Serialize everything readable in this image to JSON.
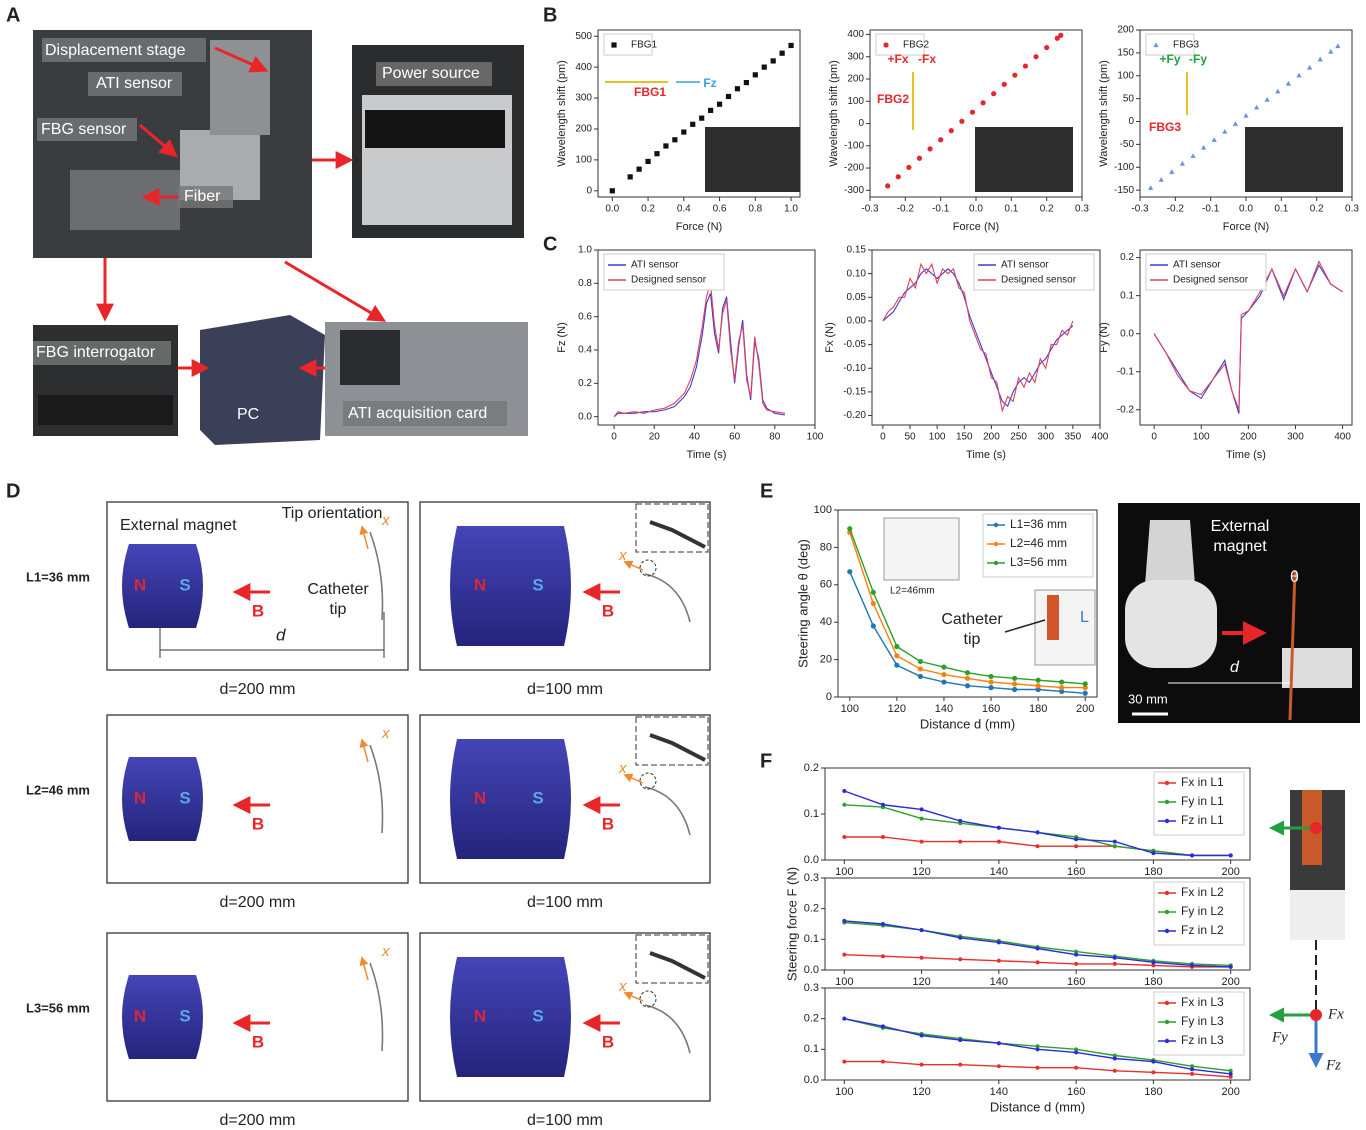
{
  "panels": {
    "A": {
      "label": "A",
      "texts": [
        "Displacement stage",
        "ATI sensor",
        "FBG sensor",
        "Fiber",
        "Power source",
        "FBG interrogator",
        "PC",
        "ATI acquisition card"
      ]
    },
    "B": {
      "label": "B"
    },
    "C": {
      "label": "C"
    },
    "D": {
      "label": "D",
      "external_magnet": "External magnet",
      "tip_orientation": "Tip orientation",
      "catheter_tip": [
        "Catheter",
        "tip"
      ],
      "poles": [
        "N",
        "S"
      ],
      "field": "B",
      "axis": "x",
      "distance": "d",
      "rows": [
        {
          "label": "L1=36 mm",
          "captions": [
            "d=200 mm",
            "d=100 mm"
          ]
        },
        {
          "label": "L2=46 mm",
          "captions": [
            "d=200 mm",
            "d=100 mm"
          ]
        },
        {
          "label": "L3=56 mm",
          "captions": [
            "d=200 mm",
            "d=100 mm"
          ]
        }
      ]
    },
    "E": {
      "label": "E",
      "inset_label": "L2=46mm",
      "catheter_tip": [
        "Catheter",
        "tip"
      ],
      "length": "L",
      "photo": {
        "external_magnet": [
          "External",
          "magnet"
        ],
        "theta": "θ",
        "distance": "d",
        "scale": "30 mm"
      }
    },
    "F": {
      "label": "F",
      "ylabel": "Steering force F (N)",
      "diagram": {
        "fx": "Fx",
        "fy": "Fy",
        "fz": "Fz"
      }
    }
  },
  "chart_data": [
    {
      "type": "scatter",
      "marker": "square",
      "x": [
        0,
        0.1,
        0.15,
        0.2,
        0.25,
        0.3,
        0.35,
        0.4,
        0.45,
        0.5,
        0.55,
        0.6,
        0.65,
        0.7,
        0.75,
        0.8,
        0.85,
        0.9,
        0.95,
        1.0
      ],
      "series": [
        {
          "name": "FBG1",
          "color": "#111111",
          "values": [
            0,
            45,
            70,
            95,
            120,
            145,
            165,
            190,
            215,
            235,
            260,
            280,
            305,
            330,
            350,
            375,
            400,
            420,
            445,
            470
          ]
        }
      ],
      "xlim": [
        -0.08,
        1.05
      ],
      "ylim": [
        -20,
        520
      ],
      "xticks": [
        {
          "value": 0,
          "label": "0.0"
        },
        0.2,
        0.4,
        0.6,
        0.8,
        {
          "value": 1,
          "label": "1.0"
        }
      ],
      "yticks": [
        0,
        100,
        200,
        300,
        400,
        500
      ],
      "xlabel": "Force (N)",
      "ylabel": "Wavelength shift (pm)",
      "legend": "upper left",
      "annotations": [
        "FBG1",
        "Fz"
      ]
    },
    {
      "type": "scatter",
      "marker": "circle",
      "x": [
        -0.25,
        -0.22,
        -0.19,
        -0.16,
        -0.13,
        -0.1,
        -0.07,
        -0.04,
        -0.01,
        0.02,
        0.05,
        0.08,
        0.11,
        0.14,
        0.17,
        0.2,
        0.23,
        0.24
      ],
      "series": [
        {
          "name": "FBG2",
          "color": "#e8262a",
          "values": [
            -280,
            -239,
            -197,
            -156,
            -114,
            -73,
            -32,
            10,
            51,
            93,
            134,
            176,
            217,
            258,
            300,
            341,
            383,
            396
          ]
        }
      ],
      "xlim": [
        -0.3,
        0.3
      ],
      "ylim": [
        -330,
        420
      ],
      "xticks": [
        -0.3,
        -0.2,
        -0.1,
        {
          "value": 0,
          "label": "0.0"
        },
        0.1,
        0.2,
        0.3
      ],
      "yticks": [
        -300,
        -200,
        -100,
        0,
        100,
        200,
        300,
        400
      ],
      "xlabel": "Force (N)",
      "ylabel": "Wavelength shift (pm)",
      "legend": "upper left",
      "annotations": [
        "FBG2",
        "+Fx",
        "-Fx"
      ]
    },
    {
      "type": "scatter",
      "marker": "triangle",
      "x": [
        -0.27,
        -0.24,
        -0.21,
        -0.18,
        -0.15,
        -0.12,
        -0.09,
        -0.06,
        -0.03,
        0,
        0.03,
        0.06,
        0.09,
        0.12,
        0.15,
        0.18,
        0.21,
        0.24,
        0.26
      ],
      "series": [
        {
          "name": "FBG3",
          "color": "#6b8cf0",
          "values": [
            -145,
            -127,
            -110,
            -92,
            -75,
            -57,
            -40,
            -22,
            -5,
            13,
            31,
            48,
            66,
            83,
            101,
            118,
            136,
            153,
            165
          ]
        }
      ],
      "xlim": [
        -0.3,
        0.3
      ],
      "ylim": [
        -165,
        200
      ],
      "xticks": [
        -0.3,
        -0.2,
        -0.1,
        {
          "value": 0,
          "label": "0.0"
        },
        0.1,
        0.2,
        0.3
      ],
      "yticks": [
        -150,
        -100,
        -50,
        0,
        50,
        100,
        150,
        200
      ],
      "xlabel": "Force (N)",
      "ylabel": "Wavelength shift (pm)",
      "legend": "upper left",
      "annotations": [
        "FBG3",
        "+Fy",
        "-Fy"
      ]
    },
    {
      "type": "line",
      "x": [
        0,
        2,
        5,
        10,
        15,
        20,
        25,
        30,
        35,
        38,
        41,
        44,
        46,
        48,
        50,
        52,
        54,
        56,
        58,
        60,
        62,
        64,
        66,
        68,
        70,
        72,
        74,
        76,
        80,
        85
      ],
      "series": [
        {
          "name": "ATI sensor",
          "color": "#3b3bd6",
          "values": [
            0,
            0.02,
            0.02,
            0.02,
            0.03,
            0.03,
            0.04,
            0.06,
            0.12,
            0.18,
            0.3,
            0.5,
            0.68,
            0.74,
            0.5,
            0.38,
            0.65,
            0.72,
            0.45,
            0.2,
            0.42,
            0.58,
            0.25,
            0.1,
            0.45,
            0.35,
            0.1,
            0.05,
            0.02,
            0.01
          ]
        },
        {
          "name": "Designed sensor",
          "color": "#e0405a",
          "values": [
            0,
            0.03,
            0.02,
            0.03,
            0.02,
            0.04,
            0.05,
            0.08,
            0.14,
            0.22,
            0.34,
            0.55,
            0.72,
            0.8,
            0.55,
            0.4,
            0.62,
            0.7,
            0.4,
            0.22,
            0.45,
            0.55,
            0.22,
            0.12,
            0.48,
            0.32,
            0.08,
            0.04,
            0.03,
            0.02
          ]
        }
      ],
      "xlim": [
        -8,
        100
      ],
      "ylim": [
        -0.05,
        1.0
      ],
      "xticks": [
        0,
        20,
        40,
        60,
        80,
        100
      ],
      "yticks": [
        {
          "value": 0,
          "label": "0.0"
        },
        0.2,
        0.4,
        0.6,
        0.8,
        {
          "value": 1,
          "label": "1.0"
        }
      ],
      "xlabel": "Time (s)",
      "ylabel": "Fz (N)",
      "legend": "upper left"
    },
    {
      "type": "line",
      "x": [
        0,
        10,
        20,
        30,
        40,
        50,
        60,
        70,
        80,
        90,
        100,
        110,
        120,
        130,
        140,
        150,
        160,
        170,
        180,
        190,
        200,
        210,
        220,
        230,
        240,
        250,
        260,
        270,
        280,
        290,
        300,
        310,
        320,
        330,
        340,
        350
      ],
      "series": [
        {
          "name": "ATI sensor",
          "color": "#3b3bd6",
          "values": [
            0,
            0.01,
            0.02,
            0.04,
            0.06,
            0.07,
            0.08,
            0.1,
            0.11,
            0.1,
            0.09,
            0.1,
            0.11,
            0.1,
            0.08,
            0.05,
            0.01,
            -0.02,
            -0.05,
            -0.08,
            -0.11,
            -0.14,
            -0.17,
            -0.18,
            -0.15,
            -0.13,
            -0.12,
            -0.13,
            -0.11,
            -0.09,
            -0.08,
            -0.06,
            -0.04,
            -0.03,
            -0.02,
            -0.01
          ]
        },
        {
          "name": "Designed sensor",
          "color": "#e0405a",
          "values": [
            0,
            0.02,
            0.03,
            0.05,
            0.05,
            0.09,
            0.07,
            0.12,
            0.1,
            0.12,
            0.08,
            0.11,
            0.1,
            0.11,
            0.07,
            0.06,
            0,
            -0.03,
            -0.06,
            -0.07,
            -0.12,
            -0.13,
            -0.19,
            -0.16,
            -0.17,
            -0.12,
            -0.14,
            -0.11,
            -0.13,
            -0.08,
            -0.1,
            -0.05,
            -0.05,
            -0.02,
            -0.03,
            0
          ]
        }
      ],
      "xlim": [
        -20,
        400
      ],
      "ylim": [
        -0.22,
        0.15
      ],
      "xticks": [
        0,
        50,
        100,
        150,
        200,
        250,
        300,
        350,
        400
      ],
      "yticks": [
        {
          "value": -0.2,
          "label": "-0.20"
        },
        -0.15,
        {
          "value": -0.1,
          "label": "-0.10"
        },
        -0.05,
        {
          "value": 0,
          "label": "0.00"
        },
        0.05,
        {
          "value": 0.1,
          "label": "0.10"
        },
        0.15
      ],
      "xlabel": "Time (s)",
      "ylabel": "Fx (N)",
      "legend": "upper right"
    },
    {
      "type": "line",
      "x": [
        0,
        25,
        50,
        75,
        100,
        125,
        150,
        165,
        180,
        185,
        200,
        225,
        250,
        275,
        300,
        325,
        350,
        375,
        400
      ],
      "series": [
        {
          "name": "ATI sensor",
          "color": "#3b3bd6",
          "values": [
            0,
            -0.05,
            -0.1,
            -0.15,
            -0.17,
            -0.12,
            -0.07,
            -0.15,
            -0.21,
            0.04,
            0.06,
            0.1,
            0.17,
            0.09,
            0.17,
            0.11,
            0.18,
            0.13,
            0.11
          ]
        },
        {
          "name": "Designed sensor",
          "color": "#e0405a",
          "values": [
            0,
            -0.05,
            -0.11,
            -0.15,
            -0.16,
            -0.12,
            -0.08,
            -0.15,
            -0.2,
            0.05,
            0.06,
            0.11,
            0.17,
            0.1,
            0.17,
            0.11,
            0.19,
            0.13,
            0.11
          ]
        }
      ],
      "xlim": [
        -30,
        420
      ],
      "ylim": [
        -0.24,
        0.22
      ],
      "xticks": [
        0,
        100,
        200,
        300,
        400
      ],
      "yticks": [
        -0.2,
        -0.1,
        {
          "value": 0,
          "label": "0.0"
        },
        0.1,
        0.2
      ],
      "xlabel": "Time (s)",
      "ylabel": "Fy (N)",
      "legend": "upper left"
    },
    {
      "type": "line",
      "markers": true,
      "x": [
        100,
        110,
        120,
        130,
        140,
        150,
        160,
        170,
        180,
        190,
        200
      ],
      "series": [
        {
          "name": "L1=36 mm",
          "color": "#1f77b4",
          "values": [
            67,
            38,
            17,
            11,
            8,
            6,
            5,
            4,
            4,
            3,
            2
          ]
        },
        {
          "name": "L2=46 mm",
          "color": "#ff7f0e",
          "values": [
            88,
            50,
            22,
            15,
            12,
            10,
            8,
            7,
            6,
            5,
            5
          ]
        },
        {
          "name": "L3=56 mm",
          "color": "#2ca02c",
          "values": [
            90,
            56,
            27,
            19,
            16,
            13,
            11,
            10,
            9,
            8,
            7
          ]
        }
      ],
      "xlim": [
        95,
        205
      ],
      "ylim": [
        0,
        100
      ],
      "xticks": [
        100,
        120,
        140,
        160,
        180,
        200
      ],
      "yticks": [
        0,
        20,
        40,
        60,
        80,
        100
      ],
      "xlabel": "Distance d (mm)",
      "ylabel": "Steering angle θ (deg)",
      "legend": "upper right"
    },
    {
      "type": "line",
      "markers": true,
      "x": [
        100,
        110,
        120,
        130,
        140,
        150,
        160,
        170,
        180,
        190,
        200
      ],
      "series": [
        {
          "name": "Fx in L1",
          "color": "#e8302a",
          "values": [
            0.05,
            0.05,
            0.04,
            0.04,
            0.04,
            0.03,
            0.03,
            0.03,
            0.02,
            0.01,
            0.01
          ]
        },
        {
          "name": "Fy in L1",
          "color": "#2ca02c",
          "values": [
            0.12,
            0.115,
            0.09,
            0.08,
            0.07,
            0.06,
            0.05,
            0.03,
            0.02,
            0.01,
            0.01
          ]
        },
        {
          "name": "Fz in L1",
          "color": "#2b2bdc",
          "values": [
            0.15,
            0.12,
            0.11,
            0.085,
            0.07,
            0.06,
            0.045,
            0.04,
            0.015,
            0.01,
            0.01
          ]
        }
      ],
      "xlim": [
        95,
        205
      ],
      "ylim": [
        0,
        0.2
      ],
      "xticks": [
        100,
        120,
        140,
        160,
        180,
        200
      ],
      "yticks": [
        {
          "value": 0,
          "label": "0.0"
        },
        0.1,
        0.2
      ],
      "legend": "upper right"
    },
    {
      "type": "line",
      "markers": true,
      "x": [
        100,
        110,
        120,
        130,
        140,
        150,
        160,
        170,
        180,
        190,
        200
      ],
      "series": [
        {
          "name": "Fx in L2",
          "color": "#e8302a",
          "values": [
            0.05,
            0.045,
            0.04,
            0.035,
            0.03,
            0.025,
            0.02,
            0.02,
            0.015,
            0.01,
            0.01
          ]
        },
        {
          "name": "Fy in L2",
          "color": "#2ca02c",
          "values": [
            0.155,
            0.145,
            0.13,
            0.11,
            0.095,
            0.075,
            0.06,
            0.045,
            0.03,
            0.02,
            0.015
          ]
        },
        {
          "name": "Fz in L2",
          "color": "#2b2bdc",
          "values": [
            0.16,
            0.15,
            0.13,
            0.105,
            0.09,
            0.07,
            0.05,
            0.04,
            0.025,
            0.015,
            0.01
          ]
        }
      ],
      "xlim": [
        95,
        205
      ],
      "ylim": [
        0,
        0.3
      ],
      "xticks": [
        100,
        120,
        140,
        160,
        180,
        200
      ],
      "yticks": [
        {
          "value": 0,
          "label": "0.0"
        },
        0.1,
        0.2,
        0.3
      ],
      "legend": "upper right"
    },
    {
      "type": "line",
      "markers": true,
      "x": [
        100,
        110,
        120,
        130,
        140,
        150,
        160,
        170,
        180,
        190,
        200
      ],
      "series": [
        {
          "name": "Fx in L3",
          "color": "#e8302a",
          "values": [
            0.06,
            0.06,
            0.05,
            0.05,
            0.045,
            0.04,
            0.04,
            0.03,
            0.025,
            0.02,
            0.01
          ]
        },
        {
          "name": "Fy in L3",
          "color": "#2ca02c",
          "values": [
            0.2,
            0.17,
            0.15,
            0.135,
            0.12,
            0.11,
            0.1,
            0.08,
            0.065,
            0.045,
            0.03
          ]
        },
        {
          "name": "Fz in L3",
          "color": "#2b2bdc",
          "values": [
            0.2,
            0.175,
            0.145,
            0.13,
            0.12,
            0.1,
            0.09,
            0.07,
            0.06,
            0.035,
            0.02
          ]
        }
      ],
      "xlim": [
        95,
        205
      ],
      "ylim": [
        0,
        0.3
      ],
      "xticks": [
        100,
        120,
        140,
        160,
        180,
        200
      ],
      "yticks": [
        {
          "value": 0,
          "label": "0.0"
        },
        0.1,
        0.2,
        0.3
      ],
      "xlabel": "Distance d (mm)",
      "legend": "upper right"
    }
  ]
}
